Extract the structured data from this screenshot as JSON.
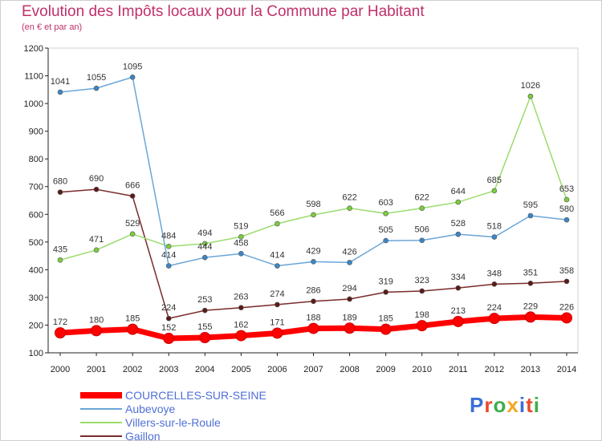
{
  "title": "Evolution des Impôts locaux pour la Commune par Habitant",
  "subtitle": "(en € et par an)",
  "logo": "Proxiti",
  "chart_data": {
    "type": "line",
    "x": [
      2000,
      2001,
      2002,
      2003,
      2004,
      2005,
      2006,
      2007,
      2008,
      2009,
      2010,
      2011,
      2012,
      2013,
      2014
    ],
    "ylim": [
      100,
      1200
    ],
    "yticks": [
      100,
      200,
      300,
      400,
      500,
      600,
      700,
      800,
      900,
      1000,
      1100,
      1200
    ],
    "grid": false,
    "legend_position": "bottom-left",
    "series": [
      {
        "name": "COURCELLES-SUR-SEINE",
        "color": "#ff0000",
        "marker": "#ff0000",
        "values": [
          172,
          180,
          185,
          152,
          155,
          162,
          171,
          188,
          189,
          185,
          198,
          213,
          224,
          229,
          226
        ]
      },
      {
        "name": "Aubevoye",
        "color": "#6aa6d8",
        "marker": "#3b86c6",
        "values": [
          1041,
          1055,
          1095,
          414,
          444,
          458,
          414,
          429,
          426,
          505,
          506,
          528,
          518,
          595,
          580
        ]
      },
      {
        "name": "Villers-sur-le-Roule",
        "color": "#9bdc6c",
        "marker": "#7ccc3f",
        "values": [
          435,
          471,
          529,
          484,
          494,
          519,
          566,
          598,
          622,
          603,
          622,
          644,
          685,
          1026,
          653
        ]
      },
      {
        "name": "Gaillon",
        "color": "#7a2a2a",
        "marker": "#5c1a1a",
        "values": [
          680,
          690,
          666,
          224,
          253,
          263,
          274,
          286,
          294,
          319,
          323,
          334,
          348,
          351,
          358
        ]
      }
    ]
  }
}
